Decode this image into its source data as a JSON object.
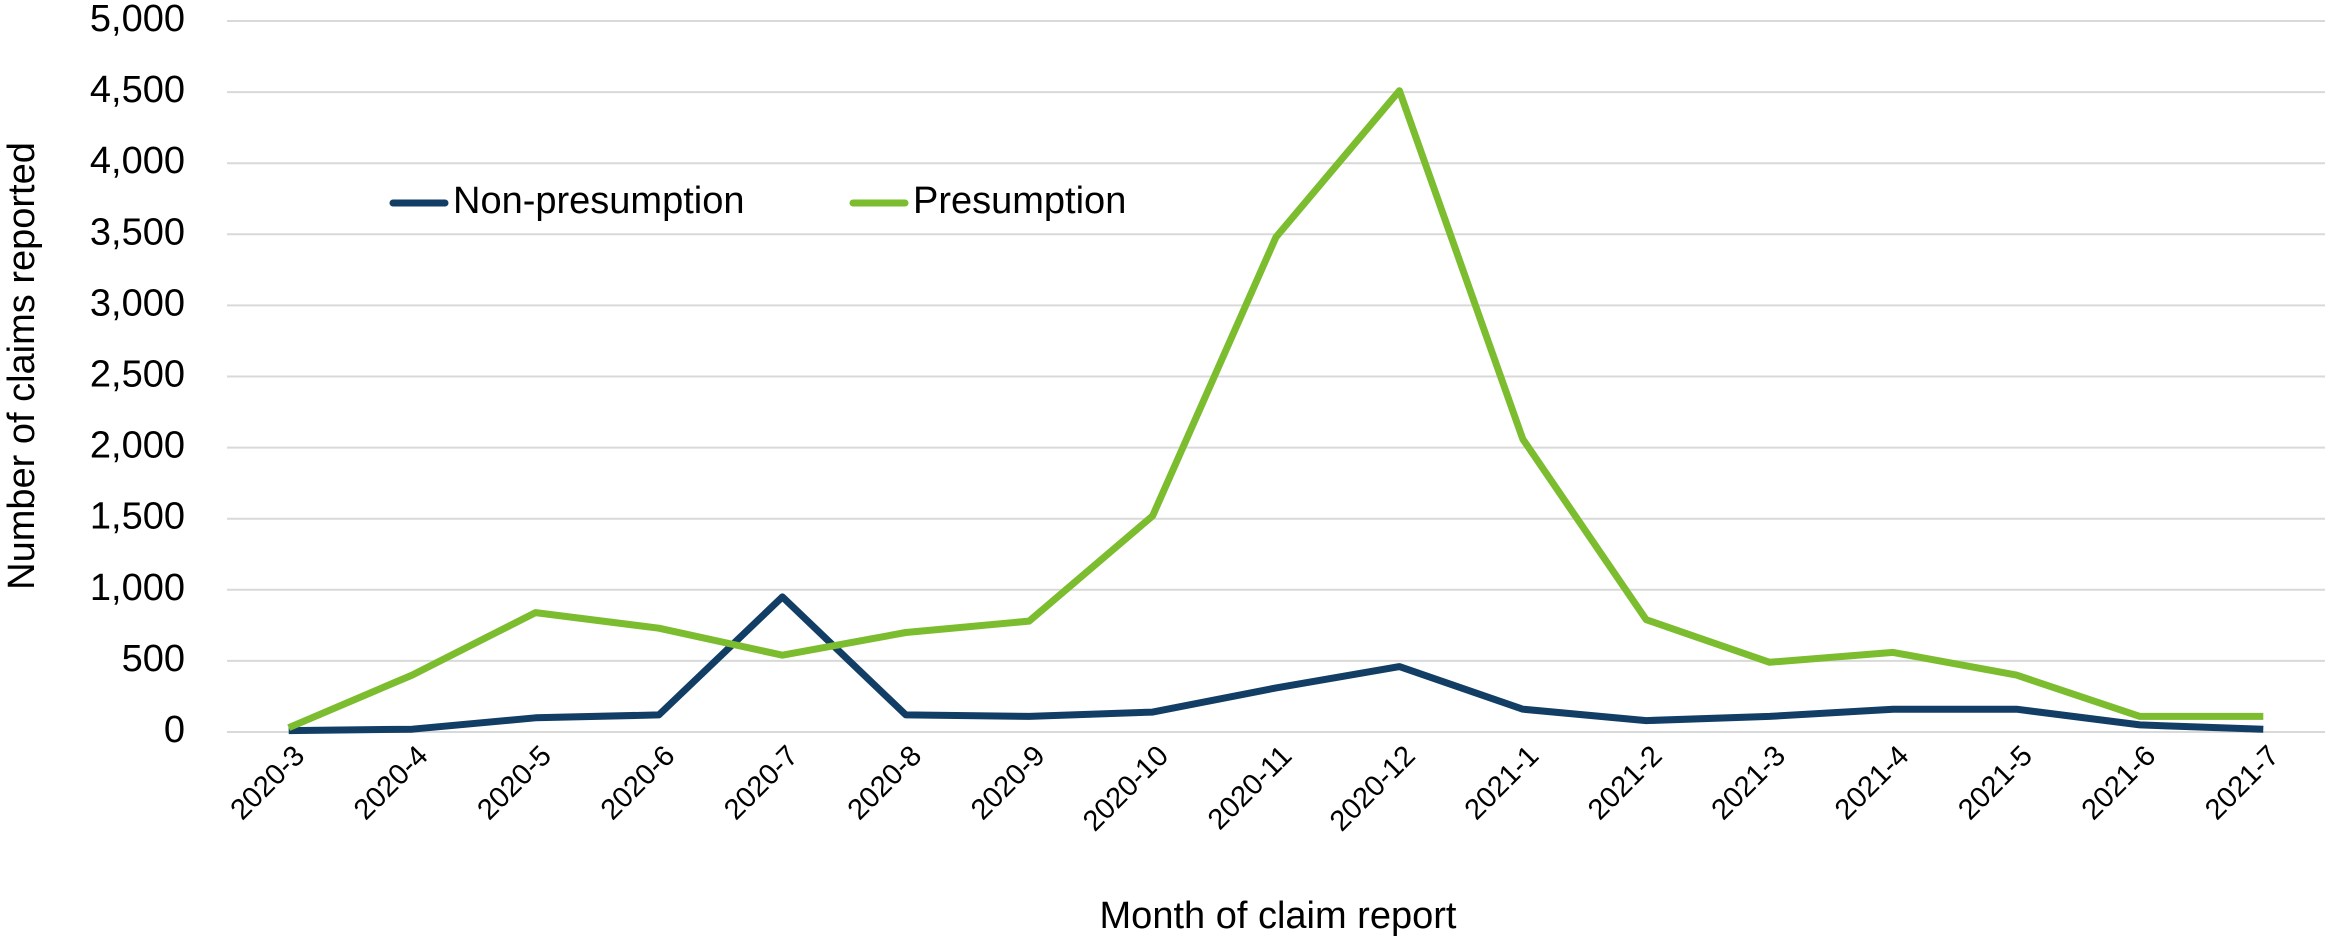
{
  "chart_data": {
    "type": "line",
    "xlabel": "Month of claim report",
    "ylabel": "Number of claims reported",
    "categories": [
      "2020-3",
      "2020-4",
      "2020-5",
      "2020-6",
      "2020-7",
      "2020-8",
      "2020-9",
      "2020-10",
      "2020-11",
      "2020-12",
      "2021-1",
      "2021-2",
      "2021-3",
      "2021-4",
      "2021-5",
      "2021-6",
      "2021-7"
    ],
    "series": [
      {
        "name": "Non-presumption",
        "color": "#123e66",
        "values": [
          10,
          20,
          100,
          120,
          950,
          120,
          110,
          140,
          310,
          460,
          160,
          80,
          110,
          160,
          160,
          50,
          20
        ]
      },
      {
        "name": "Presumption",
        "color": "#7bbd2e",
        "values": [
          30,
          400,
          840,
          730,
          540,
          700,
          780,
          1520,
          3480,
          4510,
          2060,
          790,
          490,
          560,
          400,
          110,
          110
        ]
      }
    ],
    "ylim": [
      0,
      5000
    ],
    "yticks": [
      0,
      {
        "value": 500,
        "label": "500"
      },
      {
        "value": 1000,
        "label": "1,000"
      },
      {
        "value": 1500,
        "label": "1,500"
      },
      {
        "value": 2000,
        "label": "2,000"
      },
      {
        "value": 2500,
        "label": "2,500"
      },
      {
        "value": 3000,
        "label": "3,000"
      },
      {
        "value": 3500,
        "label": "3,500"
      },
      {
        "value": 4000,
        "label": "4,000"
      },
      {
        "value": 4500,
        "label": "4,500"
      },
      {
        "value": 5000,
        "label": "5,000"
      }
    ],
    "grid": true,
    "legend": "top-left"
  }
}
